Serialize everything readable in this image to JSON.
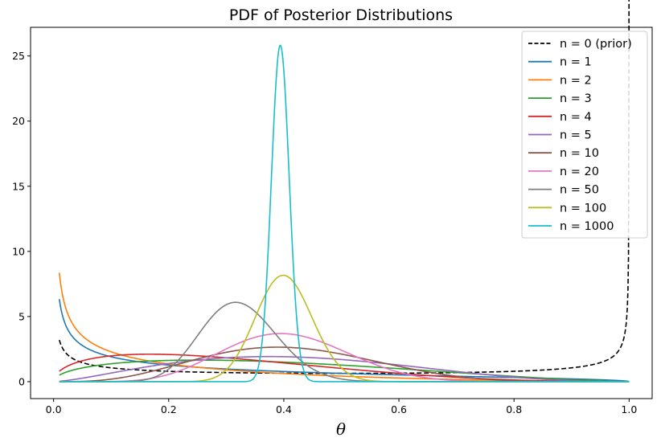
{
  "chart_data": {
    "type": "line",
    "title": "PDF of Posterior Distributions",
    "xlabel": "θ",
    "ylabel": "",
    "xlim": [
      -0.04,
      1.04
    ],
    "ylim": [
      -1.3,
      27.2
    ],
    "xticks": [
      "0.0",
      "0.2",
      "0.4",
      "0.6",
      "0.8",
      "1.0"
    ],
    "yticks": [
      "0",
      "5",
      "10",
      "15",
      "20",
      "25"
    ],
    "legend_position": "top-right",
    "x_range": [
      0.01,
      1.0
    ],
    "series": [
      {
        "name": "n = 0 (prior)",
        "color": "#000000",
        "dashed": true,
        "alpha": 0.5,
        "beta": 0.5
      },
      {
        "name": "n = 1",
        "color": "#1f77b4",
        "dashed": false,
        "alpha": 0.5,
        "beta": 1.5
      },
      {
        "name": "n = 2",
        "color": "#ff7f0e",
        "dashed": false,
        "alpha": 0.5,
        "beta": 2.5
      },
      {
        "name": "n = 3",
        "color": "#2ca02c",
        "dashed": false,
        "alpha": 1.5,
        "beta": 2.5
      },
      {
        "name": "n = 4",
        "color": "#d62728",
        "dashed": false,
        "alpha": 1.5,
        "beta": 3.5
      },
      {
        "name": "n = 5",
        "color": "#9467bd",
        "dashed": false,
        "alpha": 2.5,
        "beta": 3.5
      },
      {
        "name": "n = 10",
        "color": "#8c564b",
        "dashed": false,
        "alpha": 4.5,
        "beta": 6.5
      },
      {
        "name": "n = 20",
        "color": "#e377c2",
        "dashed": false,
        "alpha": 8.5,
        "beta": 12.5
      },
      {
        "name": "n = 50",
        "color": "#7f7f7f",
        "dashed": false,
        "alpha": 16.5,
        "beta": 34.5
      },
      {
        "name": "n = 100",
        "color": "#bcbd22",
        "dashed": false,
        "alpha": 40.5,
        "beta": 60.5
      },
      {
        "name": "n = 1000",
        "color": "#17becf",
        "dashed": false,
        "alpha": 394.5,
        "beta": 606.5
      }
    ]
  }
}
